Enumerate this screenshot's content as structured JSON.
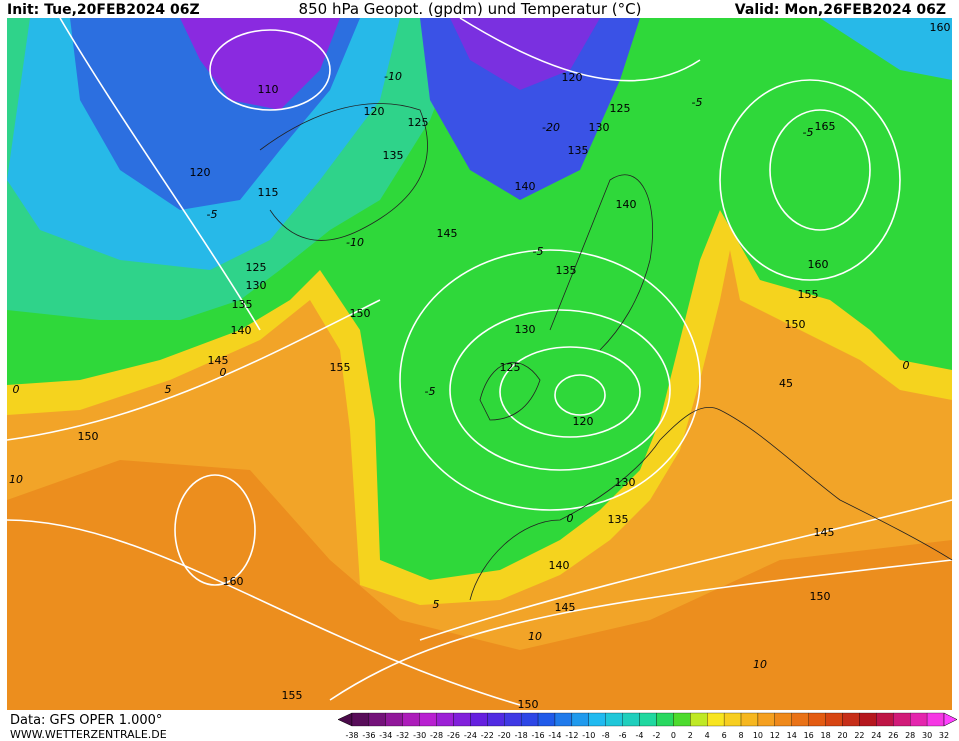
{
  "header": {
    "init": "Init: Tue,20FEB2024 06Z",
    "title": "850 hPa Geopot. (gpdm) und Temperatur (°C)",
    "valid": "Valid: Mon,26FEB2024 06Z"
  },
  "map": {
    "contour_labels": [
      110,
      115,
      120,
      125,
      130,
      135,
      140,
      145,
      150,
      155,
      150,
      160,
      155,
      120,
      125,
      135,
      145,
      120,
      125,
      130,
      135,
      140,
      140,
      135,
      130,
      125,
      120,
      130,
      135,
      140,
      145,
      150,
      145,
      150,
      155,
      160,
      165,
      160,
      45,
      150
    ],
    "temperature_labels": [
      -10,
      -5,
      -10,
      -5,
      -5,
      -5,
      0,
      5,
      0,
      10,
      5,
      10,
      10,
      0,
      0,
      -20,
      -5
    ]
  },
  "footer": {
    "source": "Data: GFS OPER 1.000°",
    "website": "WWW.WETTERZENTRALE.DE"
  },
  "colorbar": {
    "labels": [
      -38,
      -36,
      -34,
      -32,
      -30,
      -28,
      -26,
      -24,
      -22,
      -20,
      -18,
      -16,
      -14,
      -12,
      -10,
      -8,
      -6,
      -4,
      -2,
      0,
      2,
      4,
      6,
      8,
      10,
      12,
      14,
      16,
      18,
      20,
      22,
      24,
      26,
      28,
      30,
      32
    ]
  }
}
